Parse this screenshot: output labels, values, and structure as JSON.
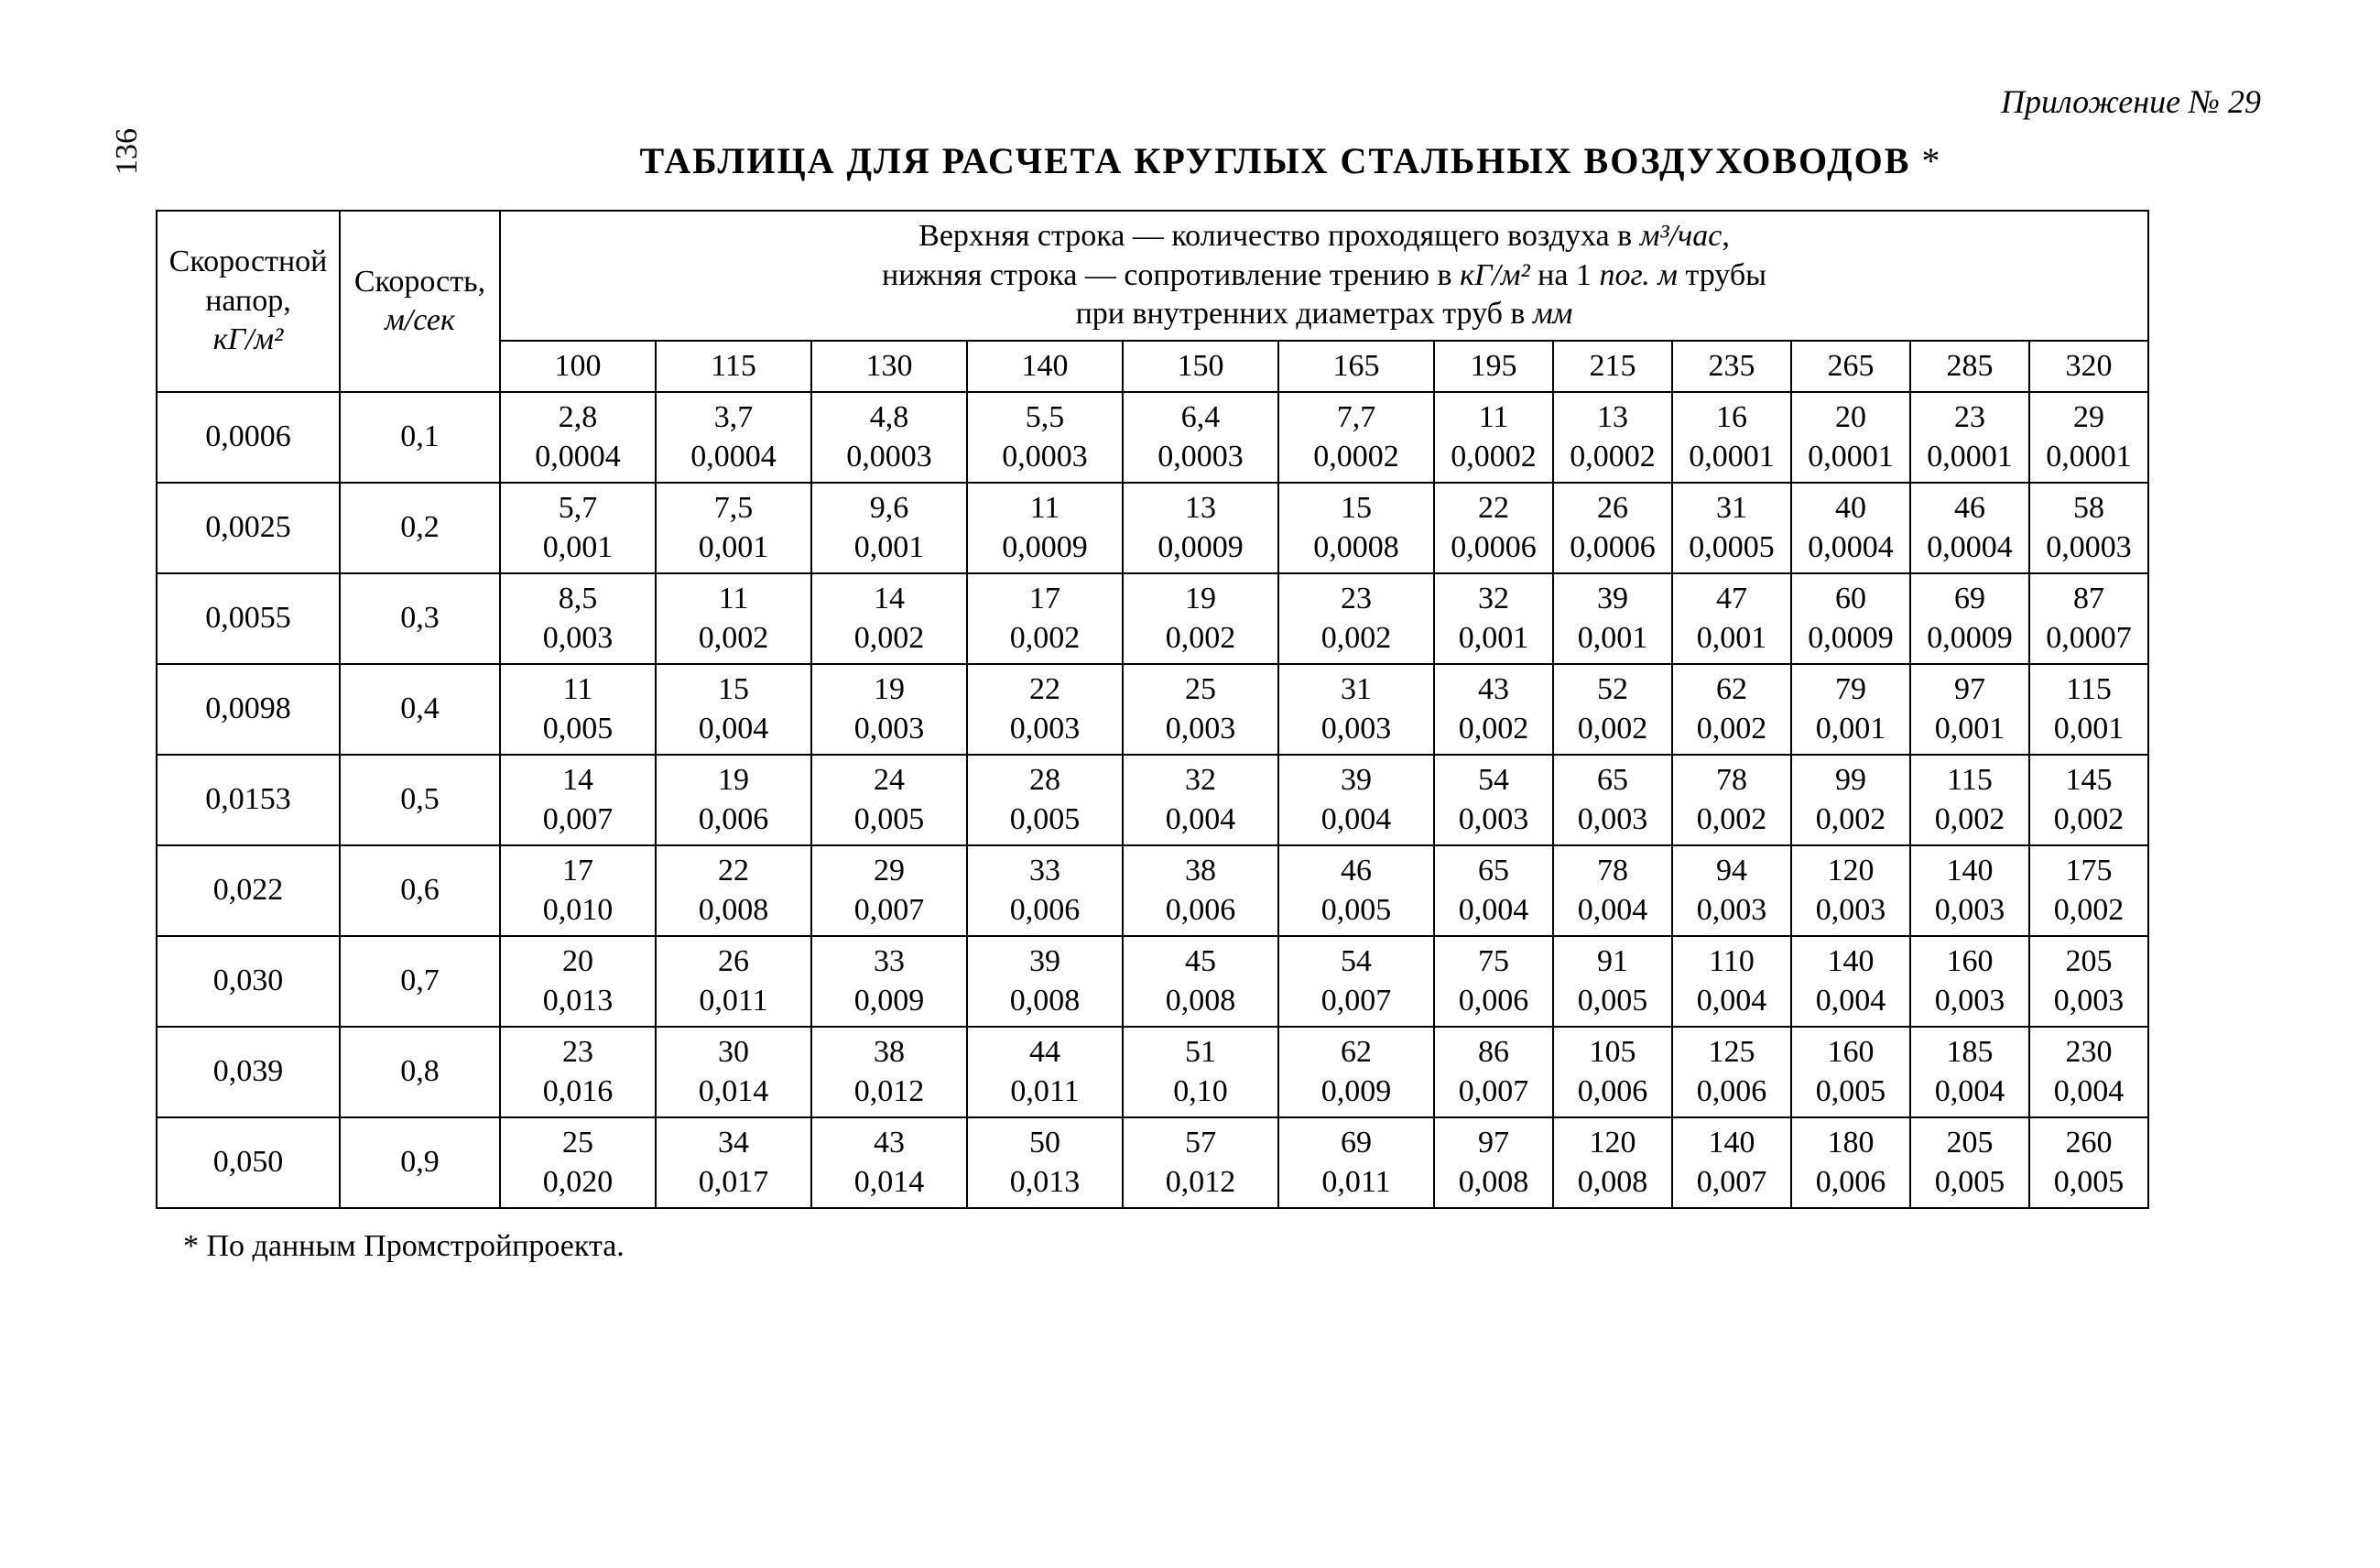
{
  "page_number": "136",
  "appendix": "Приложение № 29",
  "title_main": "ТАБЛИЦА ДЛЯ РАСЧЕТА КРУГЛЫХ СТАЛЬНЫХ ВОЗДУХОВОДОВ",
  "title_ast": "*",
  "footnote": "* По данным Промстройпроекта.",
  "header": {
    "col1_line1": "Скоростной",
    "col1_line2": "напор,",
    "col1_unit": "кГ/м²",
    "col2_line1": "Скорость,",
    "col2_unit": "м/сек",
    "banner_line1a": "Верхняя строка — количество проходящего воздуха в ",
    "banner_unit1": "м³/час",
    "banner_comma": ",",
    "banner_line2a": "нижняя  строка — сопротивление трению в ",
    "banner_unit2": "кГ/м²",
    "banner_line2b": " на 1 ",
    "banner_unit3": "пог. м",
    "banner_line2c": " трубы",
    "banner_line3": "при внутренних диаметрах труб в ",
    "banner_unit4": "мм",
    "diameters": [
      "100",
      "115",
      "130",
      "140",
      "150",
      "165",
      "195",
      "215",
      "235",
      "265",
      "285",
      "320"
    ]
  },
  "rows": [
    {
      "pressure": "0,0006",
      "velocity": "0,1",
      "cells": [
        {
          "top": "2,8",
          "bot": "0,0004"
        },
        {
          "top": "3,7",
          "bot": "0,0004"
        },
        {
          "top": "4,8",
          "bot": "0,0003"
        },
        {
          "top": "5,5",
          "bot": "0,0003"
        },
        {
          "top": "6,4",
          "bot": "0,0003"
        },
        {
          "top": "7,7",
          "bot": "0,0002"
        },
        {
          "top": "11",
          "bot": "0,0002"
        },
        {
          "top": "13",
          "bot": "0,0002"
        },
        {
          "top": "16",
          "bot": "0,0001"
        },
        {
          "top": "20",
          "bot": "0,0001"
        },
        {
          "top": "23",
          "bot": "0,0001"
        },
        {
          "top": "29",
          "bot": "0,0001"
        }
      ]
    },
    {
      "pressure": "0,0025",
      "velocity": "0,2",
      "cells": [
        {
          "top": "5,7",
          "bot": "0,001"
        },
        {
          "top": "7,5",
          "bot": "0,001"
        },
        {
          "top": "9,6",
          "bot": "0,001"
        },
        {
          "top": "11",
          "bot": "0,0009"
        },
        {
          "top": "13",
          "bot": "0,0009"
        },
        {
          "top": "15",
          "bot": "0,0008"
        },
        {
          "top": "22",
          "bot": "0,0006"
        },
        {
          "top": "26",
          "bot": "0,0006"
        },
        {
          "top": "31",
          "bot": "0,0005"
        },
        {
          "top": "40",
          "bot": "0,0004"
        },
        {
          "top": "46",
          "bot": "0,0004"
        },
        {
          "top": "58",
          "bot": "0,0003"
        }
      ]
    },
    {
      "pressure": "0,0055",
      "velocity": "0,3",
      "cells": [
        {
          "top": "8,5",
          "bot": "0,003"
        },
        {
          "top": "11",
          "bot": "0,002"
        },
        {
          "top": "14",
          "bot": "0,002"
        },
        {
          "top": "17",
          "bot": "0,002"
        },
        {
          "top": "19",
          "bot": "0,002"
        },
        {
          "top": "23",
          "bot": "0,002"
        },
        {
          "top": "32",
          "bot": "0,001"
        },
        {
          "top": "39",
          "bot": "0,001"
        },
        {
          "top": "47",
          "bot": "0,001"
        },
        {
          "top": "60",
          "bot": "0,0009"
        },
        {
          "top": "69",
          "bot": "0,0009"
        },
        {
          "top": "87",
          "bot": "0,0007"
        }
      ]
    },
    {
      "pressure": "0,0098",
      "velocity": "0,4",
      "cells": [
        {
          "top": "11",
          "bot": "0,005"
        },
        {
          "top": "15",
          "bot": "0,004"
        },
        {
          "top": "19",
          "bot": "0,003"
        },
        {
          "top": "22",
          "bot": "0,003"
        },
        {
          "top": "25",
          "bot": "0,003"
        },
        {
          "top": "31",
          "bot": "0,003"
        },
        {
          "top": "43",
          "bot": "0,002"
        },
        {
          "top": "52",
          "bot": "0,002"
        },
        {
          "top": "62",
          "bot": "0,002"
        },
        {
          "top": "79",
          "bot": "0,001"
        },
        {
          "top": "97",
          "bot": "0,001"
        },
        {
          "top": "115",
          "bot": "0,001"
        }
      ]
    },
    {
      "pressure": "0,0153",
      "velocity": "0,5",
      "cells": [
        {
          "top": "14",
          "bot": "0,007"
        },
        {
          "top": "19",
          "bot": "0,006"
        },
        {
          "top": "24",
          "bot": "0,005"
        },
        {
          "top": "28",
          "bot": "0,005"
        },
        {
          "top": "32",
          "bot": "0,004"
        },
        {
          "top": "39",
          "bot": "0,004"
        },
        {
          "top": "54",
          "bot": "0,003"
        },
        {
          "top": "65",
          "bot": "0,003"
        },
        {
          "top": "78",
          "bot": "0,002"
        },
        {
          "top": "99",
          "bot": "0,002"
        },
        {
          "top": "115",
          "bot": "0,002"
        },
        {
          "top": "145",
          "bot": "0,002"
        }
      ]
    },
    {
      "pressure": "0,022",
      "velocity": "0,6",
      "cells": [
        {
          "top": "17",
          "bot": "0,010"
        },
        {
          "top": "22",
          "bot": "0,008"
        },
        {
          "top": "29",
          "bot": "0,007"
        },
        {
          "top": "33",
          "bot": "0,006"
        },
        {
          "top": "38",
          "bot": "0,006"
        },
        {
          "top": "46",
          "bot": "0,005"
        },
        {
          "top": "65",
          "bot": "0,004"
        },
        {
          "top": "78",
          "bot": "0,004"
        },
        {
          "top": "94",
          "bot": "0,003"
        },
        {
          "top": "120",
          "bot": "0,003"
        },
        {
          "top": "140",
          "bot": "0,003"
        },
        {
          "top": "175",
          "bot": "0,002"
        }
      ]
    },
    {
      "pressure": "0,030",
      "velocity": "0,7",
      "cells": [
        {
          "top": "20",
          "bot": "0,013"
        },
        {
          "top": "26",
          "bot": "0,011"
        },
        {
          "top": "33",
          "bot": "0,009"
        },
        {
          "top": "39",
          "bot": "0,008"
        },
        {
          "top": "45",
          "bot": "0,008"
        },
        {
          "top": "54",
          "bot": "0,007"
        },
        {
          "top": "75",
          "bot": "0,006"
        },
        {
          "top": "91",
          "bot": "0,005"
        },
        {
          "top": "110",
          "bot": "0,004"
        },
        {
          "top": "140",
          "bot": "0,004"
        },
        {
          "top": "160",
          "bot": "0,003"
        },
        {
          "top": "205",
          "bot": "0,003"
        }
      ]
    },
    {
      "pressure": "0,039",
      "velocity": "0,8",
      "cells": [
        {
          "top": "23",
          "bot": "0,016"
        },
        {
          "top": "30",
          "bot": "0,014"
        },
        {
          "top": "38",
          "bot": "0,012"
        },
        {
          "top": "44",
          "bot": "0,011"
        },
        {
          "top": "51",
          "bot": "0,10"
        },
        {
          "top": "62",
          "bot": "0,009"
        },
        {
          "top": "86",
          "bot": "0,007"
        },
        {
          "top": "105",
          "bot": "0,006"
        },
        {
          "top": "125",
          "bot": "0,006"
        },
        {
          "top": "160",
          "bot": "0,005"
        },
        {
          "top": "185",
          "bot": "0,004"
        },
        {
          "top": "230",
          "bot": "0,004"
        }
      ]
    },
    {
      "pressure": "0,050",
      "velocity": "0,9",
      "cells": [
        {
          "top": "25",
          "bot": "0,020"
        },
        {
          "top": "34",
          "bot": "0,017"
        },
        {
          "top": "43",
          "bot": "0,014"
        },
        {
          "top": "50",
          "bot": "0,013"
        },
        {
          "top": "57",
          "bot": "0,012"
        },
        {
          "top": "69",
          "bot": "0,011"
        },
        {
          "top": "97",
          "bot": "0,008"
        },
        {
          "top": "120",
          "bot": "0,008"
        },
        {
          "top": "140",
          "bot": "0,007"
        },
        {
          "top": "180",
          "bot": "0,006"
        },
        {
          "top": "205",
          "bot": "0,005"
        },
        {
          "top": "260",
          "bot": "0,005"
        }
      ]
    }
  ]
}
